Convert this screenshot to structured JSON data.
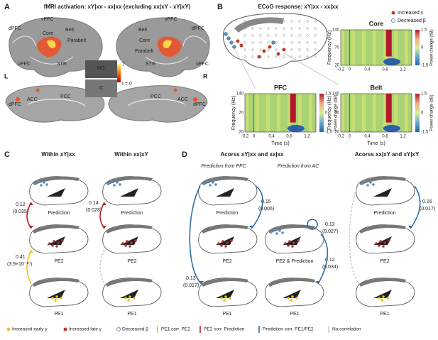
{
  "panel_a": {
    "label": "A",
    "title": "fMRI activation: xY|xx - xx|xx (excluding xx|xY - xY|xY)",
    "lateral_left": [
      "dPFC",
      "vPFC",
      "Core",
      "Belt",
      "Parabelt",
      "oPFC",
      "STR"
    ],
    "lateral_right": [
      "Belt",
      "Core",
      "Parabelt",
      "STR",
      "vPFC",
      "dPFC",
      "oPFC"
    ],
    "inset": [
      "MG",
      "IC"
    ],
    "colorbar": [
      "7",
      "t = 0"
    ],
    "hemispheres": [
      "L",
      "R"
    ],
    "medial_left": [
      "dPFC",
      "ACC",
      "PCC"
    ],
    "medial_right": [
      "PCC",
      "ACC",
      "dPFC"
    ]
  },
  "panel_b": {
    "label": "B",
    "title": "ECoG response: xY|xx - xx|xx",
    "legend": [
      "Increased γ",
      "Decreased β"
    ],
    "plots": [
      "Core",
      "PFC",
      "Belt"
    ],
    "y_axis": "Frequency (Hz)",
    "y_ticks": [
      "140",
      "70",
      "20"
    ],
    "x_axis": "Time (s)",
    "x_ticks": [
      "-0.2",
      "0",
      "0.4",
      "0.8",
      "1.2"
    ],
    "colorbar_ticks": [
      "1.5",
      "0",
      "-1.5"
    ],
    "colorbar_label": "Power change (dB)"
  },
  "panel_c": {
    "label": "C",
    "columns": [
      "Within xY|xx",
      "Within xx|xY"
    ],
    "stages": [
      "Prediction",
      "PE2",
      "PE1"
    ],
    "links": [
      [
        "0.12",
        "(0.035)"
      ],
      [
        "0.41",
        "(3.9×10⁻¹⁵)"
      ],
      [
        "0.14",
        "(0.028)"
      ]
    ]
  },
  "panel_d": {
    "label": "D",
    "columns": [
      "Acorss xY|xx and xx|xx",
      "Acorss xx|xY and xY|xY"
    ],
    "subtitles": [
      "Prediction from PFC",
      "Prediction from AC"
    ],
    "stages": [
      "Prediction",
      "PE2",
      "PE1",
      "PE2 & Prediction"
    ],
    "links": [
      [
        "0.15",
        "(0.006)"
      ],
      [
        "0.13",
        "(0.017)"
      ],
      [
        "0.12",
        "(0.027)"
      ],
      [
        "0.12",
        "(0.034)"
      ],
      [
        "0.16",
        "(0.017)"
      ]
    ]
  },
  "legend": [
    "Increased early γ",
    "Increased late γ",
    "Decreased β",
    "PE1 corr. PE2",
    "PE2 corr. Prediction",
    "Prediction corr. PE1/PE2",
    "No correlation"
  ]
}
